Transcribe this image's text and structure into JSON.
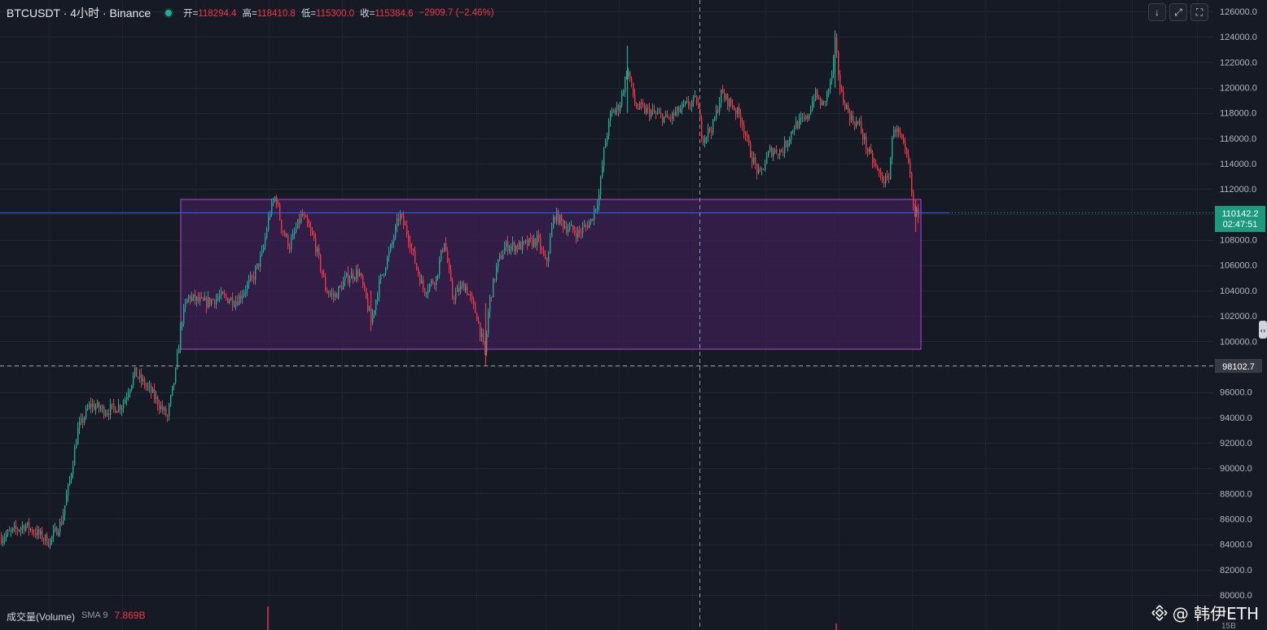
{
  "header": {
    "symbol": "BTCUSDT · 4小时 · Binance",
    "open_label": "开=",
    "open_value": "118294.4",
    "high_label": "高=",
    "high_value": "118410.8",
    "low_label": "低=",
    "low_value": "115300.0",
    "close_label": "收=",
    "close_value": "115384.6",
    "change": "−2909.7 (−2.46%)"
  },
  "toolbar": {
    "down_icon": "↓",
    "expand_icon": "⤢",
    "fullscreen_icon": "⛶"
  },
  "price_axis": {
    "labels": [
      "126000.0",
      "124000.0",
      "122000.0",
      "120000.0",
      "118000.0",
      "116000.0",
      "114000.0",
      "112000.0",
      "108000.0",
      "106000.0",
      "104000.0",
      "102000.0",
      "100000.0",
      "96000.0",
      "94000.0",
      "92000.0",
      "90000.0",
      "88000.0",
      "86000.0",
      "84000.0",
      "82000.0",
      "80000.0"
    ],
    "current_price": "110142.2",
    "countdown": "02:47:51",
    "crosshair_price": "98102.7"
  },
  "volume": {
    "label": "成交量(Volume)",
    "sma": "SMA 9",
    "value": "7.869B"
  },
  "time_axis": {
    "partial_label": "15B"
  },
  "watermark": {
    "text": "@ 韩伊ETH"
  },
  "colors": {
    "background": "#161a25",
    "up": "#22ab94",
    "down": "#f23645",
    "box_fill": "#3b1f4f",
    "box_border": "#b24bd0",
    "price_line": "#2962ff",
    "current_label_bg": "#1d9a7d"
  },
  "chart_data": {
    "type": "candlestick",
    "title": "BTCUSDT · 4小时 · Binance",
    "ylim": [
      80000,
      126000
    ],
    "yticks": [
      80000,
      82000,
      84000,
      86000,
      88000,
      90000,
      92000,
      94000,
      96000,
      98000,
      100000,
      102000,
      104000,
      106000,
      108000,
      110000,
      112000,
      114000,
      116000,
      118000,
      120000,
      122000,
      124000,
      126000
    ],
    "series_path_close": [
      [
        0,
        84500
      ],
      [
        30,
        85500
      ],
      [
        60,
        84200
      ],
      [
        75,
        85800
      ],
      [
        85,
        89000
      ],
      [
        95,
        93000
      ],
      [
        110,
        95000
      ],
      [
        130,
        94500
      ],
      [
        150,
        95000
      ],
      [
        165,
        97500
      ],
      [
        185,
        96000
      ],
      [
        205,
        94000
      ],
      [
        215,
        97500
      ],
      [
        222,
        101500
      ],
      [
        230,
        103500
      ],
      [
        250,
        103000
      ],
      [
        270,
        103500
      ],
      [
        290,
        103200
      ],
      [
        310,
        105000
      ],
      [
        322,
        107000
      ],
      [
        330,
        110000
      ],
      [
        338,
        111500
      ],
      [
        345,
        109000
      ],
      [
        355,
        107500
      ],
      [
        370,
        110000
      ],
      [
        385,
        108000
      ],
      [
        400,
        104000
      ],
      [
        410,
        103500
      ],
      [
        425,
        105000
      ],
      [
        440,
        105500
      ],
      [
        450,
        103000
      ],
      [
        455,
        101500
      ],
      [
        465,
        104500
      ],
      [
        480,
        107500
      ],
      [
        490,
        110000
      ],
      [
        500,
        108500
      ],
      [
        510,
        106000
      ],
      [
        520,
        104000
      ],
      [
        535,
        105000
      ],
      [
        545,
        108000
      ],
      [
        555,
        103500
      ],
      [
        570,
        104500
      ],
      [
        585,
        102000
      ],
      [
        595,
        99000
      ],
      [
        600,
        103000
      ],
      [
        610,
        106000
      ],
      [
        620,
        107500
      ],
      [
        640,
        107500
      ],
      [
        660,
        108000
      ],
      [
        670,
        106000
      ],
      [
        680,
        110000
      ],
      [
        695,
        109000
      ],
      [
        710,
        108500
      ],
      [
        725,
        109500
      ],
      [
        735,
        111500
      ],
      [
        742,
        115500
      ],
      [
        750,
        118000
      ],
      [
        760,
        118500
      ],
      [
        770,
        121500
      ],
      [
        780,
        118500
      ],
      [
        800,
        118000
      ],
      [
        820,
        117500
      ],
      [
        840,
        118500
      ],
      [
        855,
        119000
      ],
      [
        862,
        116000
      ],
      [
        875,
        117000
      ],
      [
        885,
        119500
      ],
      [
        900,
        118500
      ],
      [
        910,
        117500
      ],
      [
        920,
        115000
      ],
      [
        932,
        113000
      ],
      [
        945,
        115000
      ],
      [
        960,
        115000
      ],
      [
        975,
        117000
      ],
      [
        990,
        117500
      ],
      [
        1000,
        119500
      ],
      [
        1010,
        118500
      ],
      [
        1020,
        120500
      ],
      [
        1025,
        123500
      ],
      [
        1032,
        119500
      ],
      [
        1045,
        117500
      ],
      [
        1055,
        117000
      ],
      [
        1065,
        115000
      ],
      [
        1080,
        113000
      ],
      [
        1090,
        112500
      ],
      [
        1097,
        117000
      ],
      [
        1105,
        116000
      ],
      [
        1115,
        114000
      ],
      [
        1122,
        110000
      ],
      [
        1128,
        110142.2
      ]
    ],
    "range_box": {
      "top": 111300,
      "bottom": 99400,
      "x_start_px_note": "visual only"
    },
    "current_price": 110142.2,
    "crosshair_price": 98102.7,
    "volume_sma": "7.869B"
  }
}
